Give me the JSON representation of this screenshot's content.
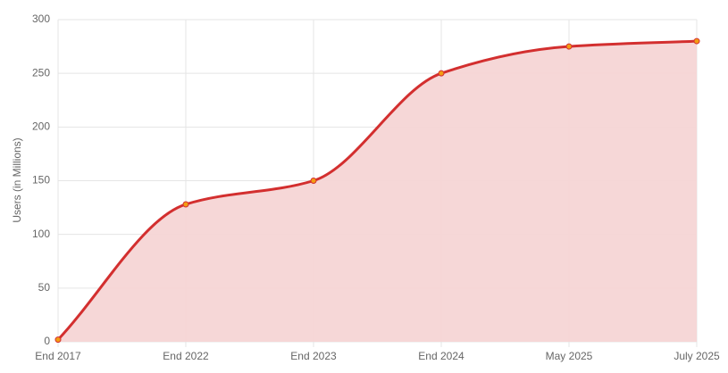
{
  "chart_data": {
    "type": "line",
    "y_label": "Users (in Millions)",
    "categories": [
      "End 2017",
      "End 2022",
      "End 2023",
      "End 2024",
      "May 2025",
      "July 2025"
    ],
    "series": [
      {
        "name": "Users",
        "color": "#d32f2f",
        "fill": "#f5d5d5",
        "point_color": "#f39c12",
        "values": [
          2,
          128,
          150,
          250,
          275,
          280
        ]
      }
    ],
    "ylim": [
      0,
      300
    ],
    "yticks": [
      0,
      50,
      100,
      150,
      200,
      250,
      300
    ],
    "grid": true,
    "area": true
  }
}
